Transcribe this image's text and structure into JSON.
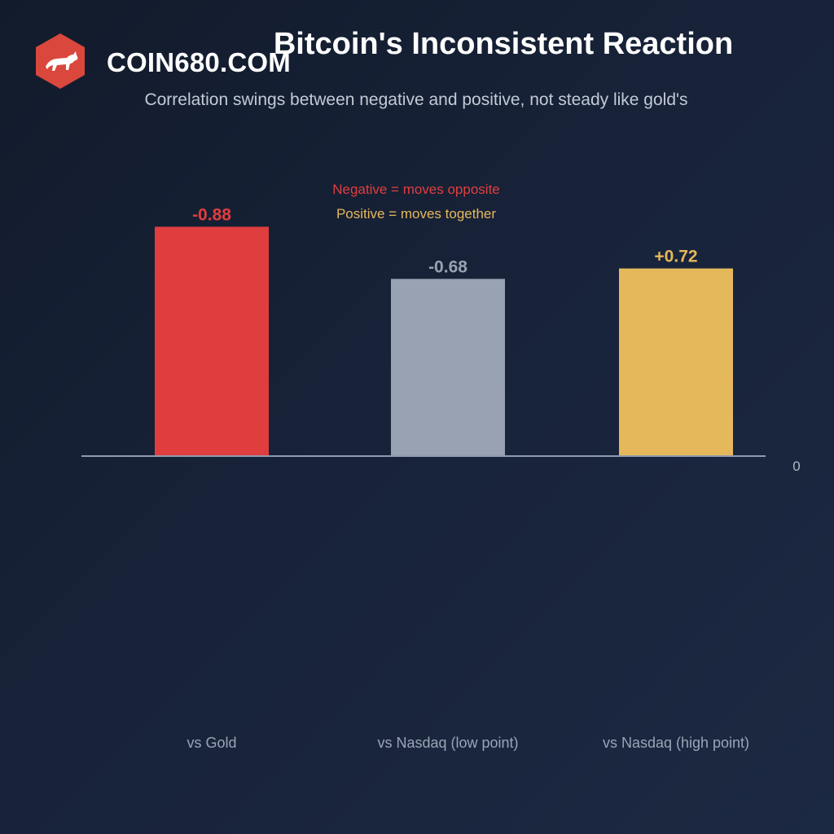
{
  "brand": {
    "name": "COIN680.COM",
    "logo_icon": "bull-icon",
    "logo_color": "#d9473d"
  },
  "chart_data": {
    "type": "bar",
    "title": "Bitcoin's Inconsistent Reaction",
    "subtitle": "Correlation swings between negative and positive, not steady like gold's",
    "categories": [
      "vs Gold",
      "vs Nasdaq (low point)",
      "vs Nasdaq (high point)"
    ],
    "values": [
      -0.88,
      -0.68,
      0.72
    ],
    "value_labels": [
      "-0.88",
      "-0.68",
      "+0.72"
    ],
    "colors": [
      "#e03e3e",
      "#98a2b2",
      "#e6b85c"
    ],
    "baseline_label": "0",
    "annotations": [
      {
        "text": "Negative = moves opposite",
        "color": "#e03e3e"
      },
      {
        "text": "Positive = moves together",
        "color": "#e6b85c"
      }
    ],
    "xlabel": "",
    "ylabel": "",
    "grid": false
  }
}
